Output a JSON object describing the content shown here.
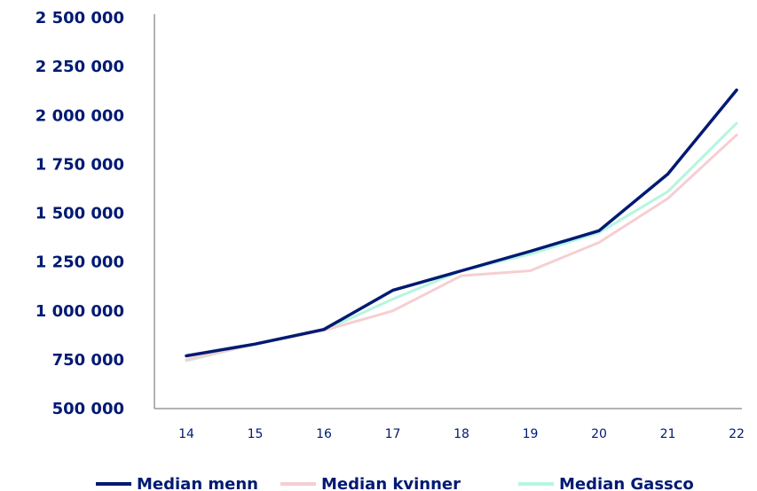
{
  "chart_data": {
    "type": "line",
    "title": "",
    "xlabel": "",
    "ylabel": "",
    "categories": [
      "14",
      "15",
      "16",
      "17",
      "18",
      "19",
      "20",
      "21",
      "22"
    ],
    "ylim": [
      500000,
      2500000
    ],
    "yticks": [
      500000,
      750000,
      1000000,
      1250000,
      1500000,
      1750000,
      2000000,
      2250000,
      2500000
    ],
    "ytick_labels": [
      "500 000",
      "750 000",
      "1 000 000",
      "1 250 000",
      "1 500 000",
      "1 750 000",
      "2 000 000",
      "2 250 000",
      "2 500 000"
    ],
    "grid": false,
    "legend_position": "bottom",
    "text_color": "#001a72",
    "axis_color": "#9a9a9a",
    "series": [
      {
        "name": "Median Gassco",
        "color": "#b6f5df",
        "values": [
          745000,
          830000,
          900000,
          1060000,
          1205000,
          1290000,
          1400000,
          1610000,
          1960000
        ]
      },
      {
        "name": "Median kvinner",
        "color": "#f5cfd2",
        "values": [
          750000,
          830000,
          900000,
          1000000,
          1180000,
          1205000,
          1350000,
          1575000,
          1900000
        ]
      },
      {
        "name": "Median menn",
        "color": "#001a72",
        "values": [
          770000,
          830000,
          905000,
          1105000,
          1205000,
          1305000,
          1410000,
          1700000,
          2130000
        ]
      }
    ],
    "legend_order": [
      "Median menn",
      "Median kvinner",
      "Median Gassco"
    ]
  }
}
